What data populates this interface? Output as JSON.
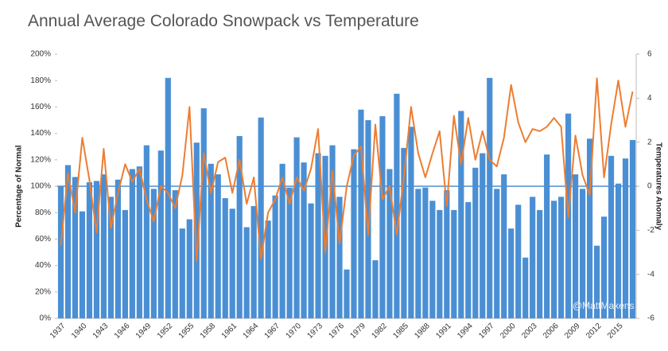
{
  "chart_data": {
    "type": "bar",
    "title": "Annual Average Colorado Snowpack vs Temperature",
    "y_label": "Percentage of Normal",
    "y2_label": "Temperatures Anomaly",
    "watermark": "@MattMakens",
    "categories": [
      "1937",
      null,
      null,
      "1940",
      null,
      null,
      "1943",
      null,
      null,
      "1946",
      null,
      null,
      "1949",
      null,
      null,
      "1952",
      null,
      null,
      "1955",
      null,
      null,
      "1958",
      null,
      null,
      "1961",
      null,
      null,
      "1964",
      null,
      null,
      "1967",
      null,
      null,
      "1970",
      null,
      null,
      "1973",
      null,
      null,
      "1976",
      null,
      null,
      "1979",
      null,
      null,
      "1982",
      null,
      null,
      "1985",
      null,
      null,
      "1988",
      null,
      null,
      "1991",
      null,
      null,
      "1994",
      null,
      null,
      "1997",
      null,
      null,
      "2000",
      null,
      null,
      "2003",
      null,
      null,
      "2006",
      null,
      null,
      "2009",
      null,
      null,
      "2012",
      null,
      null,
      "2015",
      null,
      null
    ],
    "series": [
      {
        "type": "bar",
        "color": "#4a8fd4",
        "values": [
          100,
          116,
          107,
          81,
          103,
          104,
          109,
          92,
          105,
          82,
          113,
          115,
          131,
          98,
          127,
          182,
          97,
          68,
          75,
          133,
          159,
          117,
          109,
          91,
          83,
          138,
          69,
          85,
          152,
          74,
          93,
          117,
          99,
          137,
          118,
          87,
          125,
          123,
          131,
          92,
          37,
          128,
          158,
          150,
          44,
          153,
          113,
          170,
          129,
          145,
          98,
          99,
          89,
          82,
          97,
          82,
          157,
          88,
          114,
          125,
          182,
          98,
          109,
          68,
          86,
          46,
          92,
          82,
          124,
          89,
          92,
          155,
          109,
          98,
          136,
          55,
          77,
          123,
          102,
          121,
          135
        ]
      },
      {
        "type": "line",
        "axis": "y2",
        "color": "#ed7d31",
        "values": [
          -2.7,
          0.6,
          -1.2,
          2.2,
          0.3,
          -2.1,
          1.7,
          -1.9,
          -0.3,
          1.0,
          0.2,
          0.8,
          -0.6,
          -1.6,
          0,
          -0.3,
          -1.0,
          0.5,
          3.6,
          -3.4,
          1.5,
          -0.3,
          1.1,
          1.3,
          -0.3,
          1.2,
          -0.8,
          0.4,
          -3.3,
          -1.2,
          -0.6,
          0.4,
          -0.8,
          0.4,
          -0.2,
          0.8,
          2.6,
          -3.0,
          0.7,
          -2.6,
          0,
          1.4,
          1.8,
          -2.2,
          2.8,
          -0.6,
          0,
          -2.2,
          0.4,
          3.6,
          1.5,
          0.4,
          1.5,
          2.5,
          -0.9,
          3.2,
          1.0,
          3.1,
          1.2,
          2.5,
          1.2,
          0.9,
          2.2,
          4.6,
          2.9,
          2.0,
          2.6,
          2.5,
          2.7,
          3.1,
          2.7,
          -1.4,
          2.3,
          0.5,
          -0.4,
          4.9,
          0.4,
          2.8,
          4.8,
          2.7,
          4.3
        ]
      }
    ],
    "hline": 100,
    "hline_color": "#4a8fd4",
    "ylim": [
      0,
      200
    ],
    "yticks": [
      {
        "value": 0,
        "label": "0%"
      },
      {
        "value": 20,
        "label": "20%"
      },
      {
        "value": 40,
        "label": "40%"
      },
      {
        "value": 60,
        "label": "60%"
      },
      {
        "value": 80,
        "label": "80%"
      },
      {
        "value": 100,
        "label": "100%"
      },
      {
        "value": 120,
        "label": "120%"
      },
      {
        "value": 140,
        "label": "140%"
      },
      {
        "value": 160,
        "label": "160%"
      },
      {
        "value": 180,
        "label": "180%"
      },
      {
        "value": 200,
        "label": "200%"
      }
    ],
    "y2lim": [
      -6,
      6
    ],
    "y2ticks": [
      -6,
      -4,
      -2,
      0,
      2,
      4,
      6
    ]
  }
}
